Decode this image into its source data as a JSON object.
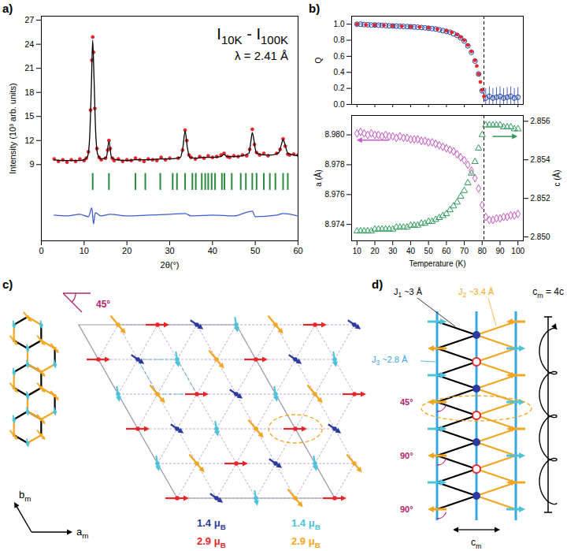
{
  "chart_data": [
    {
      "panel": "a)",
      "type": "line",
      "title": "I10K - I100K",
      "subtitle": "λ = 2.41 Å",
      "x_label": "2θ(°)",
      "y_label": "Intensity (10³ arb. units)",
      "xlim": [
        0,
        60
      ],
      "xticks": [
        0,
        10,
        20,
        30,
        40,
        50,
        60
      ],
      "ylim": [
        -0.5,
        27.5
      ],
      "yticks": [
        9,
        12,
        15,
        18,
        21,
        24,
        27
      ],
      "series": [
        {
          "type": "scatter",
          "marker": "dot",
          "color": "#e8262a",
          "x": [
            3,
            4,
            5,
            6,
            7,
            8,
            9,
            10,
            10.5,
            11,
            11.5,
            11.8,
            12,
            12.2,
            12.5,
            13,
            13.5,
            14,
            15,
            15.5,
            15.8,
            16.1,
            16.6,
            17,
            18,
            19,
            20,
            21,
            22,
            23,
            24,
            25,
            26,
            27,
            28,
            29,
            30,
            32,
            33,
            33.6,
            34,
            34.5,
            35,
            36,
            37,
            38,
            39,
            40,
            41,
            42,
            42.7,
            43.5,
            44,
            45,
            46,
            47,
            48,
            48.7,
            49.3,
            49.8,
            50.3,
            51,
            52,
            53,
            55,
            55.8,
            56.5,
            57,
            57.6,
            58,
            59,
            60
          ],
          "values": [
            9.7,
            9.4,
            9.6,
            9.3,
            9.6,
            9.4,
            9.7,
            9.5,
            9.8,
            10.6,
            15.8,
            22,
            24.9,
            23,
            16,
            11,
            9.9,
            9.6,
            9.8,
            10.8,
            12.0,
            11,
            9.8,
            9.5,
            9.7,
            9.4,
            9.6,
            9.5,
            9.8,
            9.6,
            9.4,
            9.7,
            9.6,
            9.5,
            9.9,
            9.6,
            9.8,
            9.8,
            10.8,
            13.3,
            12,
            10.2,
            9.9,
            9.7,
            10.0,
            9.8,
            10.1,
            9.9,
            10.0,
            10.2,
            10.4,
            10.0,
            9.9,
            10.1,
            10.0,
            10.2,
            10.1,
            10.9,
            13.4,
            11.5,
            10.5,
            10.2,
            10.4,
            10.1,
            10.4,
            10.9,
            12.2,
            11.3,
            10.3,
            10.2,
            10.3,
            10.2
          ]
        },
        {
          "type": "line",
          "color": "#000000",
          "x": [
            3,
            5,
            7,
            9,
            10,
            10.8,
            11.3,
            11.7,
            12,
            12.3,
            12.7,
            13.2,
            14,
            15.2,
            15.8,
            16.4,
            17.5,
            20,
            22,
            25,
            28,
            30,
            32.5,
            33.1,
            33.6,
            34.1,
            34.7,
            36,
            38,
            40,
            42,
            42.7,
            43.4,
            45,
            47,
            48.5,
            49,
            49.3,
            49.7,
            50.2,
            51,
            52,
            54,
            55.5,
            56.1,
            56.5,
            57,
            57.6,
            59,
            60
          ],
          "values": [
            9.6,
            9.5,
            9.5,
            9.5,
            9.6,
            10.0,
            12.5,
            19,
            24.5,
            20,
            13,
            10.2,
            9.7,
            9.9,
            11.9,
            9.9,
            9.6,
            9.5,
            9.6,
            9.6,
            9.7,
            9.7,
            9.9,
            11.2,
            13.2,
            11.2,
            9.9,
            9.8,
            9.9,
            9.9,
            10.0,
            10.3,
            10.0,
            10.0,
            10.1,
            10.4,
            12,
            13.0,
            12,
            10.5,
            10.3,
            10.2,
            10.2,
            10.5,
            11.5,
            12.1,
            11.4,
            10.4,
            10.2,
            10.1
          ]
        },
        {
          "type": "line",
          "color": "#3b5bcc",
          "x": [
            3,
            6,
            9,
            11,
            11.8,
            12.2,
            12.6,
            14,
            16,
            20,
            25,
            30,
            33.6,
            35,
            40,
            45,
            49.3,
            50,
            55,
            56.5,
            60
          ],
          "values": [
            2.7,
            2.6,
            2.8,
            2.5,
            3.6,
            1.6,
            3.0,
            2.6,
            2.8,
            2.6,
            2.7,
            2.8,
            2.9,
            2.6,
            2.7,
            2.6,
            3.2,
            2.5,
            2.7,
            2.9,
            2.6
          ]
        }
      ],
      "bragg_positions": [
        12,
        15.8,
        22,
        24.3,
        27.8,
        30.7,
        31.7,
        33.6,
        35.3,
        36.1,
        37.5,
        38.3,
        39,
        39.8,
        40.6,
        42.2,
        42.8,
        44.5,
        46.6,
        47.8,
        49.3,
        50.3,
        52,
        53.4,
        54.7,
        56.5,
        57.6
      ],
      "bragg_range": [
        5.8,
        7.9
      ],
      "bragg_color": "#2a8a3e"
    },
    {
      "panel": "b)",
      "type": "scatter",
      "y_label": "Q",
      "xlim": [
        7,
        103
      ],
      "xticks": [
        10,
        20,
        30,
        40,
        50,
        60,
        70,
        80,
        90,
        100
      ],
      "ylim": [
        0,
        1.1
      ],
      "yticks": [
        {
          "value": 0,
          "label": "0.0"
        },
        0.2,
        0.4,
        0.6,
        0.8,
        {
          "value": 1,
          "label": "1.0"
        }
      ],
      "tick_labels": "y",
      "vline": 81,
      "series": [
        {
          "marker": "circle",
          "color": "#2040a8",
          "x": [
            10,
            12,
            14,
            16,
            18,
            20,
            22,
            24,
            26,
            28,
            30,
            32,
            34,
            36,
            38,
            40,
            42,
            44,
            46,
            48,
            50,
            52,
            54,
            56,
            58,
            60,
            62,
            64,
            66,
            68,
            70,
            72,
            74,
            76,
            78,
            80,
            82,
            84,
            86,
            88,
            90,
            92,
            94,
            96,
            98,
            100
          ],
          "values": [
            1.0,
            1.0,
            0.995,
            0.993,
            0.99,
            0.99,
            0.988,
            0.985,
            0.983,
            0.98,
            0.978,
            0.976,
            0.974,
            0.972,
            0.97,
            0.968,
            0.965,
            0.962,
            0.958,
            0.955,
            0.95,
            0.945,
            0.94,
            0.93,
            0.92,
            0.91,
            0.9,
            0.88,
            0.86,
            0.83,
            0.79,
            0.73,
            0.65,
            0.54,
            0.38,
            0.17,
            0.08,
            0.1,
            0.08,
            0.09,
            0.1,
            0.08,
            0.09,
            0.1,
            0.08,
            0.09
          ],
          "errors": [
            0.01,
            0.01,
            0.01,
            0.01,
            0.01,
            0.01,
            0.01,
            0.01,
            0.01,
            0.01,
            0.01,
            0.01,
            0.01,
            0.01,
            0.01,
            0.01,
            0.01,
            0.01,
            0.01,
            0.01,
            0.01,
            0.01,
            0.01,
            0.01,
            0.01,
            0.01,
            0.01,
            0.01,
            0.01,
            0.01,
            0.01,
            0.01,
            0.01,
            0.01,
            0.01,
            0.03,
            0.12,
            0.12,
            0.12,
            0.12,
            0.12,
            0.12,
            0.12,
            0.12,
            0.12,
            0.12
          ]
        },
        {
          "marker": "dot",
          "color": "#e8262a",
          "x": [
            10,
            15,
            20,
            25,
            30,
            35,
            40,
            45,
            50,
            55,
            60,
            63,
            66,
            68,
            70,
            72,
            74,
            76,
            77,
            78,
            79,
            80,
            81
          ],
          "values": [
            1.0,
            0.99,
            0.99,
            0.985,
            0.98,
            0.975,
            0.97,
            0.965,
            0.955,
            0.94,
            0.92,
            0.9,
            0.87,
            0.84,
            0.8,
            0.74,
            0.66,
            0.55,
            0.48,
            0.38,
            0.28,
            0.18,
            0.1
          ]
        }
      ]
    },
    {
      "type": "scatter",
      "x_label": "Temperature (K)",
      "y_label": "a (Å)",
      "y2_label": "c (Å)",
      "xlim": [
        7,
        103
      ],
      "xticks": [
        10,
        20,
        30,
        40,
        50,
        60,
        70,
        80,
        90,
        100
      ],
      "ylim": [
        8.9729,
        8.9813
      ],
      "yticks": [
        8.974,
        8.976,
        8.978,
        {
          "value": 8.98,
          "label": "8.980"
        }
      ],
      "y2lim": [
        2.8498,
        2.8563
      ],
      "y2ticks": [
        {
          "value": 2.85,
          "label": "2.850"
        },
        2.852,
        2.854,
        2.856
      ],
      "vline": 81,
      "series": [
        {
          "marker": "diamond",
          "color": "#c45ac4",
          "x": [
            10,
            12,
            14,
            16,
            18,
            20,
            22,
            24,
            26,
            28,
            30,
            32,
            34,
            36,
            38,
            40,
            42,
            44,
            46,
            48,
            50,
            52,
            54,
            56,
            58,
            60,
            62,
            64,
            66,
            68,
            70,
            72,
            74,
            76,
            78,
            80,
            82,
            84,
            86,
            88,
            90,
            92,
            94,
            96,
            98,
            100
          ],
          "values": [
            8.9801,
            8.9802,
            8.9801,
            8.98,
            8.9801,
            8.98,
            8.98,
            8.9799,
            8.98,
            8.9799,
            8.9799,
            8.9798,
            8.9799,
            8.9798,
            8.9798,
            8.9797,
            8.9797,
            8.9797,
            8.9796,
            8.9796,
            8.9795,
            8.9795,
            8.9794,
            8.9793,
            8.9792,
            8.9791,
            8.979,
            8.9789,
            8.9787,
            8.9785,
            8.9783,
            8.978,
            8.9776,
            8.9771,
            8.9764,
            8.9753,
            8.9745,
            8.9743,
            8.9743,
            8.9744,
            8.9744,
            8.9745,
            8.9745,
            8.9746,
            8.9746,
            8.9747
          ]
        },
        {
          "marker": "triangle",
          "color": "#2e9a5a",
          "axis": "y2",
          "x": [
            10,
            12,
            14,
            16,
            18,
            20,
            22,
            24,
            26,
            28,
            30,
            32,
            34,
            36,
            38,
            40,
            42,
            44,
            46,
            48,
            50,
            52,
            54,
            56,
            58,
            60,
            62,
            64,
            66,
            68,
            70,
            72,
            74,
            76,
            78,
            80,
            82,
            84,
            86,
            88,
            90,
            92,
            94,
            96,
            98,
            100
          ],
          "values": [
            2.8503,
            2.8503,
            2.8503,
            2.8503,
            2.8503,
            2.8504,
            2.8504,
            2.8504,
            2.8504,
            2.8504,
            2.8504,
            2.8505,
            2.8505,
            2.8505,
            2.8505,
            2.8506,
            2.8506,
            2.8506,
            2.8507,
            2.8507,
            2.8508,
            2.8508,
            2.8509,
            2.851,
            2.8511,
            2.8512,
            2.8514,
            2.8516,
            2.8518,
            2.8521,
            2.8524,
            2.8528,
            2.8533,
            2.8539,
            2.8546,
            2.8553,
            2.8558,
            2.8558,
            2.8558,
            2.8558,
            2.8558,
            2.8557,
            2.8557,
            2.8557,
            2.8556,
            2.8556
          ]
        }
      ]
    }
  ],
  "diagrams": {
    "c": {
      "panel": "c)",
      "angle": "45°",
      "axes": {
        "a": "am",
        "b": "bm"
      },
      "moments": [
        {
          "label": "2.9 μB",
          "color": "#e8262a"
        },
        {
          "label": "1.4 μB",
          "color": "#2b3a9e"
        },
        {
          "label": "1.4 μB",
          "color": "#4cc3d9"
        },
        {
          "label": "2.9 μB",
          "color": "#f2a623"
        }
      ]
    },
    "d": {
      "panel": "d)",
      "bonds": [
        {
          "label": "J1 ~3 Å",
          "color": "#000000"
        },
        {
          "label": "J2 ~3.4 Å",
          "color": "#f2a623"
        },
        {
          "label": "J3 ~2.8 Å",
          "color": "#3aa6e0"
        }
      ],
      "angles": [
        "45°",
        "90°",
        "90°"
      ],
      "period": "cm = 4c",
      "axis": "cm"
    }
  }
}
